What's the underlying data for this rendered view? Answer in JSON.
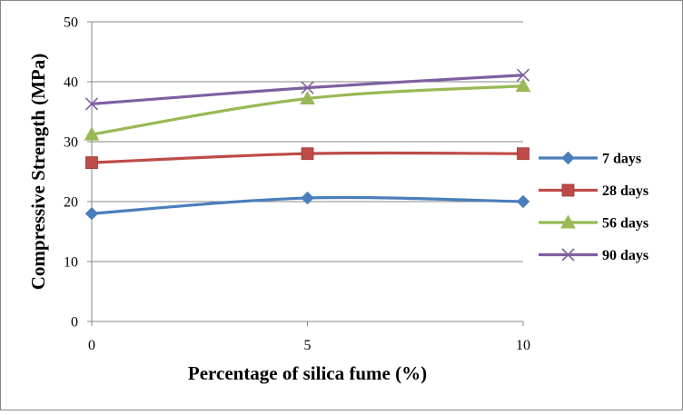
{
  "chart_data": {
    "type": "line",
    "title": "",
    "xlabel": "Percentage of silica fume (%)",
    "ylabel": "Compressive Strength (MPa)",
    "x": [
      0,
      5,
      10
    ],
    "x_tick_labels": [
      "0",
      "5",
      "10"
    ],
    "xlim": [
      0,
      10
    ],
    "ylim": [
      0,
      50
    ],
    "y_ticks": [
      0,
      10,
      20,
      30,
      40,
      50
    ],
    "y_tick_labels": [
      "0",
      "10",
      "20",
      "30",
      "40",
      "50"
    ],
    "grid": "horizontal major gridlines",
    "legend_position": "right",
    "series": [
      {
        "name": "7 days",
        "values": [
          18.0,
          20.6,
          20.0
        ],
        "color": "#4a7ebb",
        "marker": "diamond"
      },
      {
        "name": "28 days",
        "values": [
          26.5,
          28.0,
          28.0
        ],
        "color": "#be4b48",
        "marker": "square"
      },
      {
        "name": "56 days",
        "values": [
          31.2,
          37.2,
          39.3
        ],
        "color": "#98b954",
        "marker": "triangle"
      },
      {
        "name": "90 days",
        "values": [
          36.3,
          39.0,
          41.1
        ],
        "color": "#7d60a0",
        "marker": "x"
      }
    ]
  }
}
